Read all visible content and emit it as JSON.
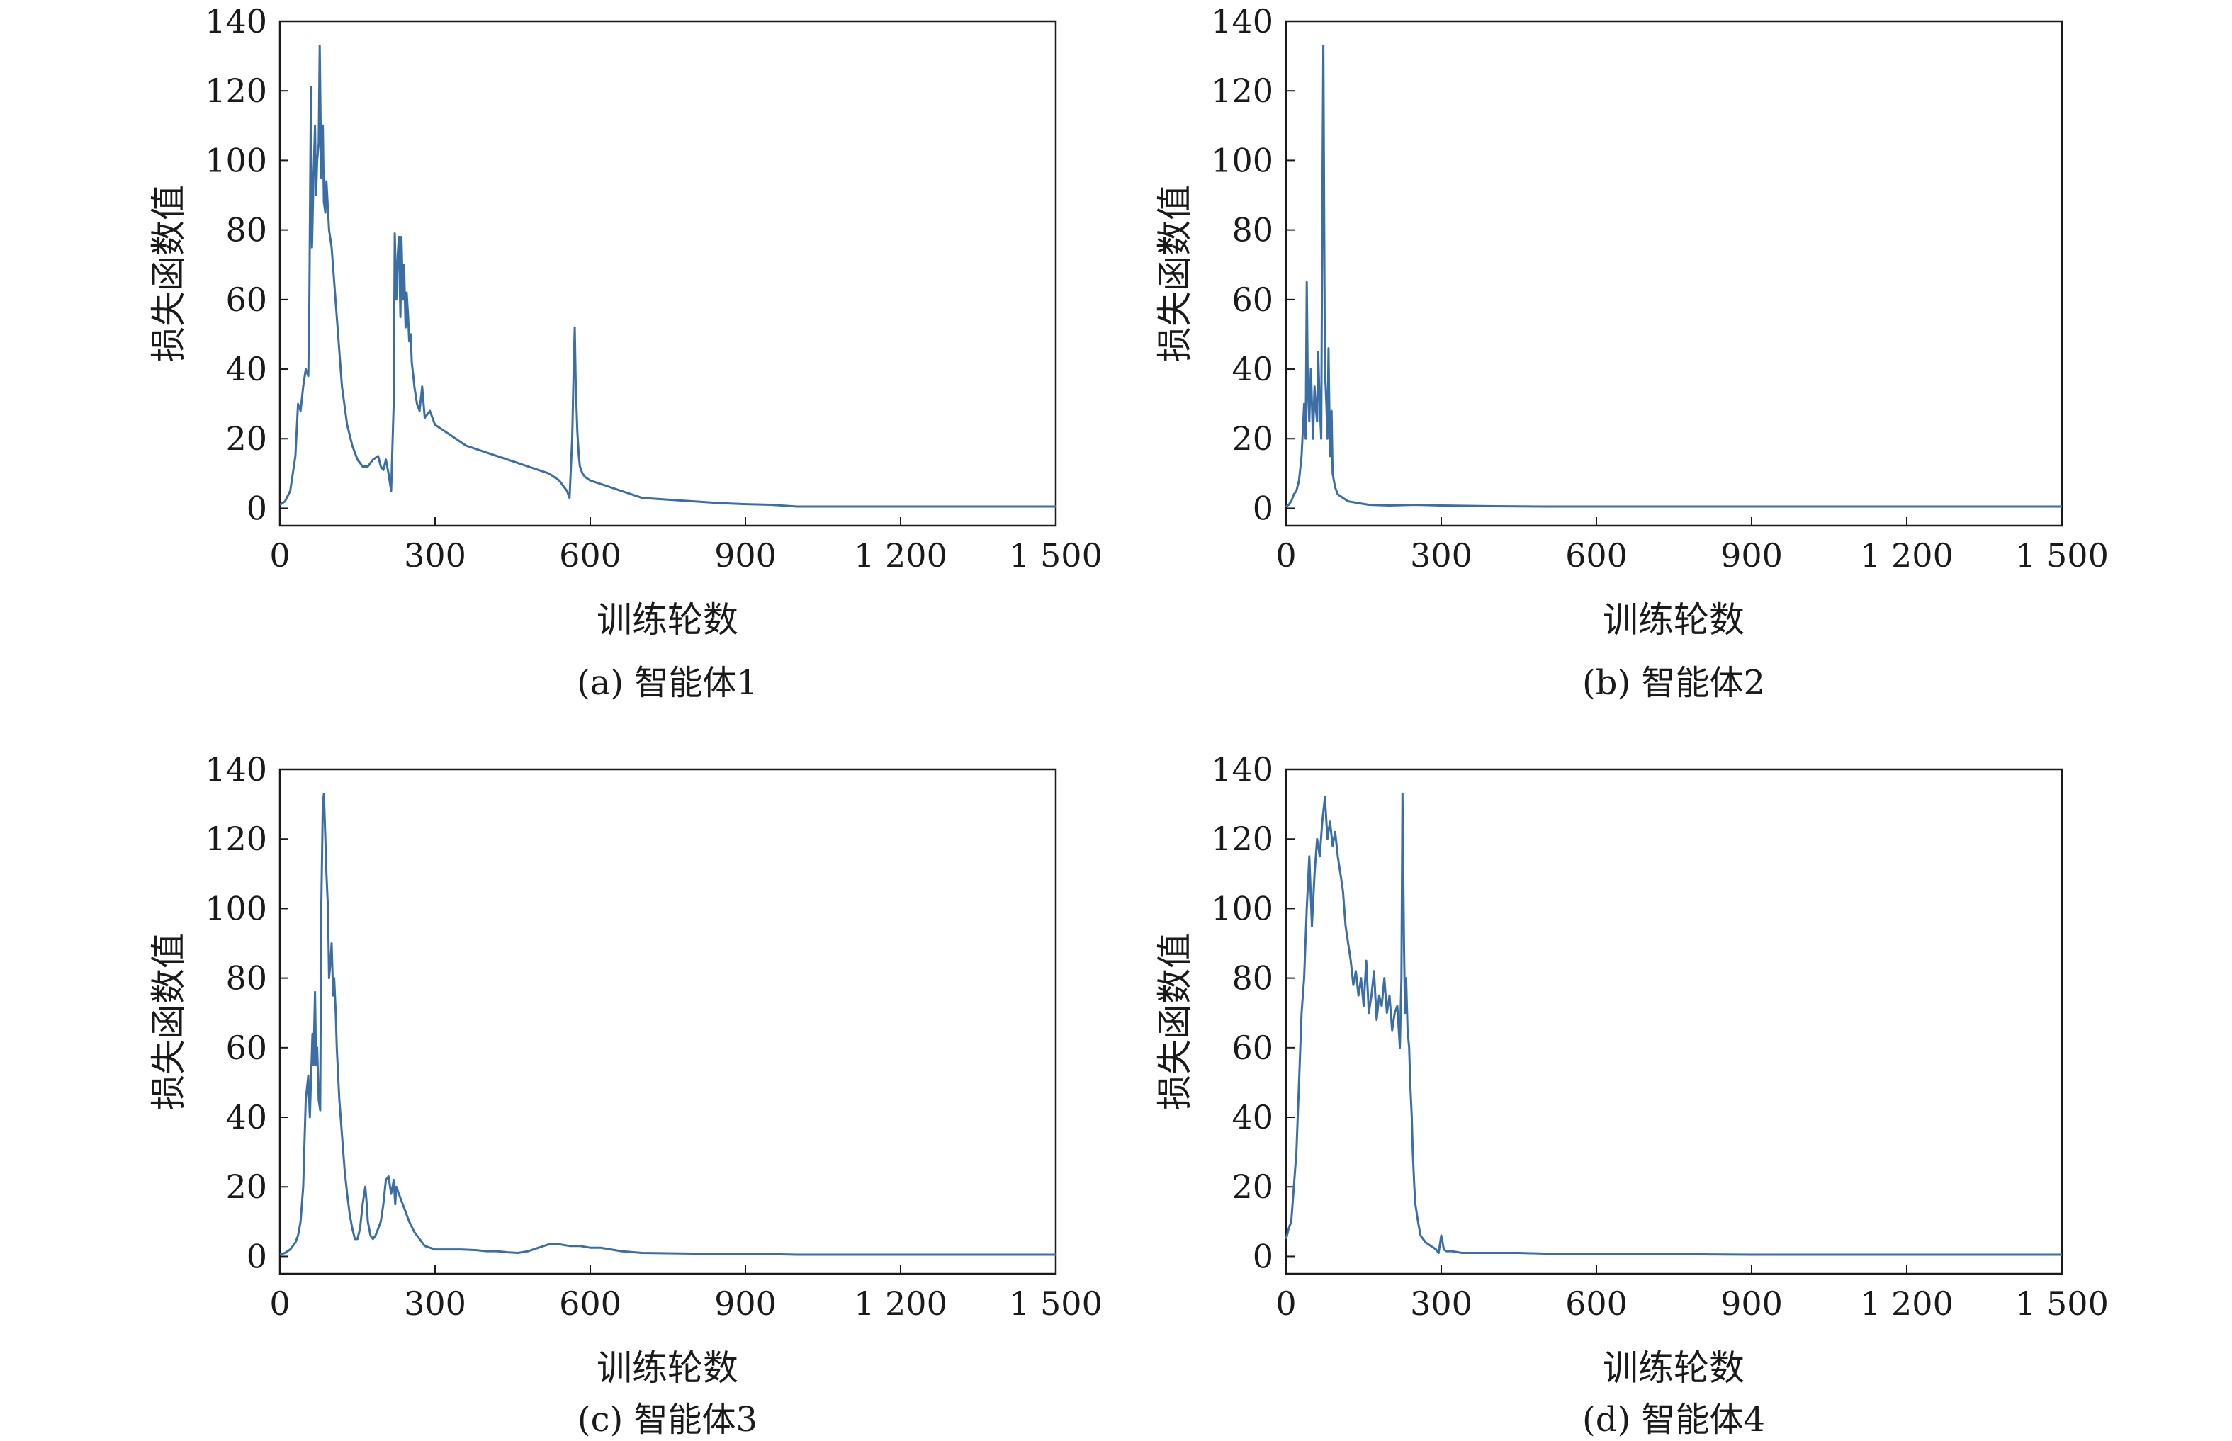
{
  "figure": {
    "panels": [
      {
        "caption": "(a) 智能体1",
        "xlabel": "训练轮数",
        "ylabel": "损失函数值"
      },
      {
        "caption": "(b) 智能体2",
        "xlabel": "训练轮数",
        "ylabel": "损失函数值"
      },
      {
        "caption": "(c) 智能体3",
        "xlabel": "训练轮数",
        "ylabel": "损失函数值"
      },
      {
        "caption": "(d) 智能体4",
        "xlabel": "训练轮数",
        "ylabel": "损失函数值"
      }
    ],
    "line_color": "#3a6ea5"
  },
  "chart_data": [
    {
      "type": "line",
      "title": "",
      "caption": "(a) 智能体1",
      "xlabel": "训练轮数",
      "ylabel": "损失函数值",
      "xlim": [
        0,
        1500
      ],
      "ylim": [
        -5,
        140
      ],
      "xticks": [
        0,
        300,
        600,
        900,
        1200,
        1500
      ],
      "xtick_labels": [
        "0",
        "300",
        "600",
        "900",
        "1 200",
        "1 500"
      ],
      "yticks": [
        0,
        20,
        40,
        60,
        80,
        100,
        120,
        140
      ],
      "ytick_labels": [
        "0",
        "20",
        "40",
        "60",
        "80",
        "100",
        "120",
        "140"
      ],
      "grid": false,
      "series": [
        {
          "x": [
            0,
            10,
            20,
            30,
            35,
            40,
            45,
            50,
            55,
            57,
            60,
            62,
            65,
            68,
            70,
            72,
            75,
            77,
            80,
            83,
            85,
            88,
            90,
            95,
            100,
            110,
            120,
            130,
            140,
            150,
            160,
            170,
            180,
            190,
            195,
            200,
            205,
            210,
            215,
            220,
            222,
            225,
            228,
            230,
            233,
            235,
            238,
            240,
            243,
            245,
            248,
            250,
            253,
            255,
            258,
            260,
            265,
            270,
            275,
            280,
            290,
            300,
            320,
            340,
            360,
            380,
            400,
            420,
            440,
            460,
            480,
            500,
            520,
            540,
            555,
            560,
            565,
            568,
            570,
            572,
            575,
            578,
            580,
            585,
            590,
            600,
            620,
            640,
            660,
            680,
            700,
            750,
            800,
            850,
            900,
            950,
            1000,
            1050,
            1100,
            1200,
            1300,
            1400,
            1500
          ],
          "y": [
            1,
            2,
            5,
            15,
            30,
            28,
            35,
            40,
            38,
            60,
            121,
            75,
            95,
            110,
            90,
            100,
            105,
            133,
            95,
            110,
            88,
            85,
            94,
            80,
            75,
            55,
            35,
            24,
            18,
            14,
            12,
            12,
            14,
            15,
            12,
            11,
            14,
            10,
            5,
            30,
            79,
            60,
            73,
            78,
            55,
            78,
            60,
            70,
            52,
            62,
            55,
            48,
            50,
            42,
            38,
            35,
            30,
            28,
            35,
            26,
            28,
            24,
            22,
            20,
            18,
            17,
            16,
            15,
            14,
            13,
            12,
            11,
            10,
            8,
            5,
            3,
            20,
            40,
            52,
            35,
            22,
            15,
            12,
            10,
            9,
            8,
            7,
            6,
            5,
            4,
            3,
            2.5,
            2,
            1.5,
            1.2,
            1,
            0.5,
            0.5,
            0.5,
            0.5,
            0.5,
            0.5,
            0.5
          ]
        }
      ]
    },
    {
      "type": "line",
      "title": "",
      "caption": "(b) 智能体2",
      "xlabel": "训练轮数",
      "ylabel": "损失函数值",
      "xlim": [
        0,
        1500
      ],
      "ylim": [
        -5,
        140
      ],
      "xticks": [
        0,
        300,
        600,
        900,
        1200,
        1500
      ],
      "xtick_labels": [
        "0",
        "300",
        "600",
        "900",
        "1 200",
        "1 500"
      ],
      "yticks": [
        0,
        20,
        40,
        60,
        80,
        100,
        120,
        140
      ],
      "ytick_labels": [
        "0",
        "20",
        "40",
        "60",
        "80",
        "100",
        "120",
        "140"
      ],
      "grid": false,
      "series": [
        {
          "x": [
            0,
            5,
            10,
            15,
            20,
            25,
            30,
            35,
            38,
            40,
            42,
            45,
            48,
            50,
            52,
            55,
            58,
            60,
            62,
            65,
            68,
            70,
            72,
            75,
            78,
            80,
            82,
            85,
            88,
            90,
            95,
            100,
            110,
            120,
            140,
            160,
            200,
            250,
            300,
            400,
            500,
            600,
            800,
            1000,
            1200,
            1500
          ],
          "y": [
            0.5,
            1,
            2,
            4,
            5,
            8,
            15,
            30,
            20,
            65,
            35,
            25,
            40,
            30,
            20,
            35,
            28,
            25,
            45,
            30,
            20,
            83,
            133,
            40,
            30,
            20,
            46,
            15,
            28,
            10,
            6,
            4,
            3,
            2,
            1.5,
            1,
            0.8,
            1,
            0.8,
            0.6,
            0.5,
            0.5,
            0.5,
            0.5,
            0.5,
            0.5
          ]
        }
      ]
    },
    {
      "type": "line",
      "title": "",
      "caption": "(c) 智能体3",
      "xlabel": "训练轮数",
      "ylabel": "损失函数值",
      "xlim": [
        0,
        1500
      ],
      "ylim": [
        -5,
        140
      ],
      "xticks": [
        0,
        300,
        600,
        900,
        1200,
        1500
      ],
      "xtick_labels": [
        "0",
        "300",
        "600",
        "900",
        "1 200",
        "1 500"
      ],
      "yticks": [
        0,
        20,
        40,
        60,
        80,
        100,
        120,
        140
      ],
      "ytick_labels": [
        "0",
        "20",
        "40",
        "60",
        "80",
        "100",
        "120",
        "140"
      ],
      "grid": false,
      "series": [
        {
          "x": [
            0,
            10,
            20,
            30,
            35,
            40,
            45,
            50,
            55,
            58,
            60,
            63,
            65,
            68,
            70,
            72,
            75,
            78,
            80,
            83,
            85,
            88,
            90,
            93,
            95,
            98,
            100,
            103,
            105,
            108,
            110,
            115,
            120,
            125,
            130,
            135,
            140,
            145,
            150,
            155,
            160,
            165,
            168,
            170,
            175,
            180,
            185,
            190,
            195,
            200,
            205,
            210,
            215,
            218,
            220,
            223,
            225,
            230,
            235,
            240,
            250,
            260,
            270,
            280,
            290,
            300,
            320,
            350,
            380,
            400,
            420,
            440,
            460,
            480,
            500,
            520,
            540,
            560,
            580,
            600,
            620,
            640,
            660,
            700,
            800,
            900,
            1000,
            1200,
            1500
          ],
          "y": [
            0.5,
            1,
            2,
            4,
            6,
            10,
            20,
            45,
            52,
            40,
            50,
            64,
            55,
            76,
            55,
            60,
            45,
            42,
            100,
            130,
            133,
            120,
            110,
            100,
            80,
            85,
            90,
            75,
            80,
            70,
            60,
            45,
            35,
            25,
            18,
            12,
            8,
            5,
            5,
            8,
            15,
            20,
            15,
            10,
            6,
            5,
            6,
            8,
            10,
            15,
            22,
            23,
            18,
            20,
            22,
            15,
            20,
            18,
            16,
            14,
            10,
            7,
            5,
            3,
            2.5,
            2,
            2,
            2,
            1.8,
            1.5,
            1.5,
            1.2,
            1,
            1.5,
            2.5,
            3.5,
            3.5,
            3,
            3,
            2.5,
            2.5,
            2,
            1.5,
            1,
            0.8,
            0.8,
            0.5,
            0.5,
            0.5
          ]
        }
      ]
    },
    {
      "type": "line",
      "title": "",
      "caption": "(d) 智能体4",
      "xlabel": "训练轮数",
      "ylabel": "损失函数值",
      "xlim": [
        0,
        1500
      ],
      "ylim": [
        -5,
        140
      ],
      "xticks": [
        0,
        300,
        600,
        900,
        1200,
        1500
      ],
      "xtick_labels": [
        "0",
        "300",
        "600",
        "900",
        "1 200",
        "1 500"
      ],
      "yticks": [
        0,
        20,
        40,
        60,
        80,
        100,
        120,
        140
      ],
      "ytick_labels": [
        "0",
        "20",
        "40",
        "60",
        "80",
        "100",
        "120",
        "140"
      ],
      "grid": false,
      "series": [
        {
          "x": [
            0,
            5,
            10,
            15,
            20,
            25,
            30,
            35,
            40,
            45,
            50,
            55,
            60,
            65,
            70,
            75,
            80,
            85,
            90,
            95,
            100,
            105,
            110,
            115,
            120,
            125,
            130,
            135,
            140,
            145,
            150,
            155,
            160,
            165,
            170,
            175,
            180,
            185,
            190,
            195,
            200,
            205,
            210,
            215,
            220,
            223,
            225,
            228,
            230,
            232,
            235,
            238,
            240,
            243,
            245,
            248,
            250,
            255,
            260,
            270,
            280,
            290,
            295,
            300,
            305,
            310,
            320,
            340,
            360,
            380,
            400,
            450,
            500,
            600,
            700,
            800,
            900,
            1000,
            1200,
            1500
          ],
          "y": [
            5,
            8,
            10,
            20,
            30,
            50,
            70,
            80,
            100,
            115,
            95,
            110,
            120,
            115,
            125,
            132,
            120,
            125,
            118,
            122,
            115,
            110,
            105,
            95,
            90,
            85,
            78,
            82,
            75,
            80,
            72,
            85,
            70,
            75,
            82,
            68,
            75,
            72,
            80,
            70,
            75,
            65,
            70,
            72,
            60,
            80,
            133,
            90,
            70,
            80,
            65,
            60,
            50,
            40,
            30,
            20,
            15,
            10,
            6,
            4,
            3,
            2,
            1,
            6,
            2,
            1.5,
            1.5,
            1,
            1,
            1,
            1,
            1,
            0.8,
            0.8,
            0.8,
            0.6,
            0.5,
            0.5,
            0.5,
            0.5
          ]
        }
      ]
    }
  ]
}
